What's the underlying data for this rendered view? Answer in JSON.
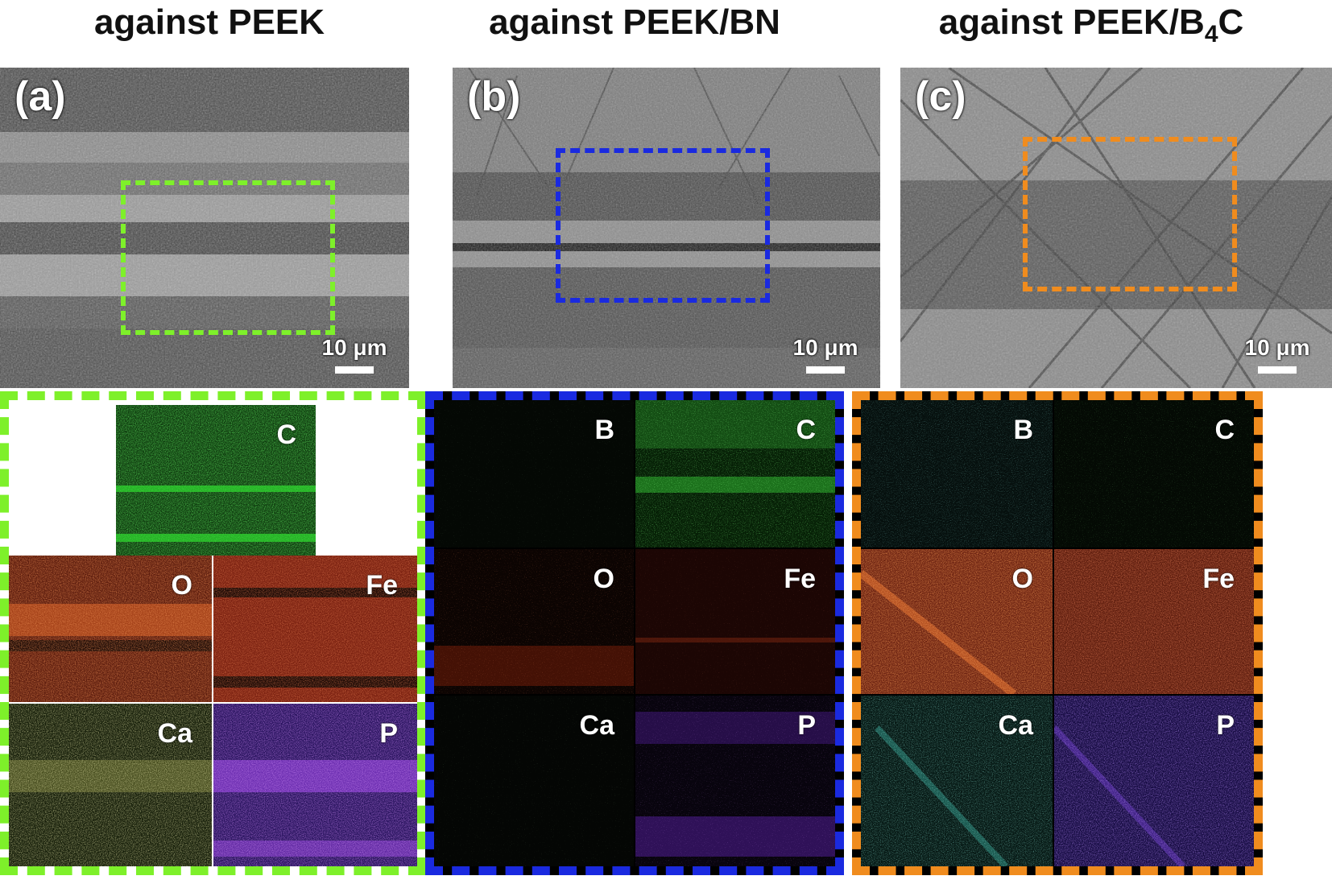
{
  "columns": [
    {
      "title": "against PEEK",
      "panel_label": "(a)",
      "scale_text": "10 μm",
      "roi_color": "#7ef02a",
      "maps": [
        {
          "element": "C",
          "color": "#20d020"
        },
        {
          "element": "O",
          "color": "#e0401a"
        },
        {
          "element": "Fe",
          "color": "#e0401a"
        },
        {
          "element": "Ca",
          "color": "#c8d060"
        },
        {
          "element": "P",
          "color": "#8a3ae8"
        }
      ]
    },
    {
      "title": "against PEEK/BN",
      "panel_label": "(b)",
      "scale_text": "10 μm",
      "roi_color": "#1a2ae0",
      "maps": [
        {
          "element": "B",
          "color": "#4a8a4a"
        },
        {
          "element": "C",
          "color": "#30e030"
        },
        {
          "element": "O",
          "color": "#e03a14"
        },
        {
          "element": "Fe",
          "color": "#c0301a"
        },
        {
          "element": "Ca",
          "color": "#6ab04a"
        },
        {
          "element": "P",
          "color": "#9a3ae8"
        }
      ]
    },
    {
      "title": "against PEEK/B",
      "title_sub": "4",
      "title_tail": "C",
      "panel_label": "(c)",
      "scale_text": "10 μm",
      "roi_color": "#f08c1e",
      "maps": [
        {
          "element": "B",
          "color": "#3aa8a0"
        },
        {
          "element": "C",
          "color": "#28b828"
        },
        {
          "element": "O",
          "color": "#e0501a"
        },
        {
          "element": "Fe",
          "color": "#c0341a"
        },
        {
          "element": "Ca",
          "color": "#3ab8a8"
        },
        {
          "element": "P",
          "color": "#6a38e0"
        }
      ]
    }
  ]
}
